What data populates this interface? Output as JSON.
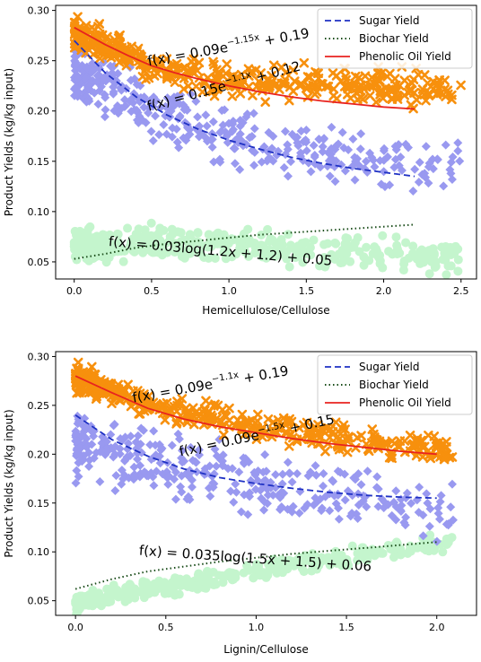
{
  "chart_data": [
    {
      "type": "scatter",
      "xlabel": "Hemicellulose/Cellulose",
      "ylabel": "Product Yields (kg/kg input)",
      "xlim": [
        -0.12,
        2.6
      ],
      "ylim": [
        0.033,
        0.305
      ],
      "xticks": [
        "0.0",
        "0.5",
        "1.0",
        "1.5",
        "2.0",
        "2.5"
      ],
      "xtick_values": [
        0,
        0.5,
        1.0,
        1.5,
        2.0,
        2.5
      ],
      "yticks": [
        "0.05",
        "0.10",
        "0.15",
        "0.20",
        "0.25",
        "0.30"
      ],
      "ytick_values": [
        0.05,
        0.1,
        0.15,
        0.2,
        0.25,
        0.3
      ],
      "grid": false,
      "legend_position": "top-right",
      "series": [
        {
          "name": "Sugar Yield",
          "kind": "line",
          "color": "#1f31c4",
          "dash": "dashed",
          "x": [
            0.0,
            0.2,
            0.4,
            0.6,
            0.8,
            1.0,
            1.2,
            1.4,
            1.6,
            1.8,
            2.0,
            2.2
          ],
          "y": [
            0.27,
            0.238,
            0.214,
            0.196,
            0.182,
            0.171,
            0.162,
            0.154,
            0.148,
            0.143,
            0.139,
            0.135
          ]
        },
        {
          "name": "Biochar Yield",
          "kind": "line",
          "color": "#1a4d1a",
          "dash": "dotted",
          "x": [
            0.0,
            0.2,
            0.4,
            0.6,
            0.8,
            1.0,
            1.2,
            1.4,
            1.6,
            1.8,
            2.0,
            2.2
          ],
          "y": [
            0.053,
            0.058,
            0.064,
            0.068,
            0.071,
            0.074,
            0.077,
            0.079,
            0.081,
            0.083,
            0.085,
            0.087
          ]
        },
        {
          "name": "Phenolic Oil Yield",
          "kind": "line",
          "color": "#e8231f",
          "dash": "solid",
          "x": [
            0.0,
            0.2,
            0.35,
            0.5,
            0.65,
            0.8,
            1.0,
            1.2,
            1.4,
            1.6,
            1.8,
            2.0,
            2.2
          ],
          "y": [
            0.283,
            0.266,
            0.255,
            0.245,
            0.238,
            0.232,
            0.225,
            0.219,
            0.214,
            0.21,
            0.207,
            0.204,
            0.202
          ]
        },
        {
          "kind": "scatter-band",
          "marker": "x",
          "color": "#f7900d",
          "x_range": [
            0.0,
            2.5
          ],
          "center": [
            [
              0.0,
              0.275
            ],
            [
              0.5,
              0.245
            ],
            [
              1.0,
              0.232
            ],
            [
              1.5,
              0.226
            ],
            [
              2.0,
              0.224
            ],
            [
              2.5,
              0.222
            ]
          ],
          "spread": 0.012,
          "count": 420
        },
        {
          "kind": "scatter-band",
          "marker": "diamond",
          "color": "#9999f0",
          "x_range": [
            0.0,
            2.5
          ],
          "center": [
            [
              0.0,
              0.24
            ],
            [
              0.5,
              0.2
            ],
            [
              1.0,
              0.175
            ],
            [
              1.5,
              0.16
            ],
            [
              2.0,
              0.148
            ],
            [
              2.5,
              0.143
            ]
          ],
          "spread": 0.02,
          "count": 380
        },
        {
          "kind": "scatter-band",
          "marker": "circle",
          "color": "#c4f5cd",
          "x_range": [
            0.0,
            2.5
          ],
          "center": [
            [
              0.0,
              0.065
            ],
            [
              0.5,
              0.07
            ],
            [
              1.0,
              0.068
            ],
            [
              1.5,
              0.062
            ],
            [
              2.0,
              0.058
            ],
            [
              2.5,
              0.055
            ]
          ],
          "spread": 0.012,
          "count": 360
        }
      ],
      "annotations": [
        {
          "base": "f(x) = 0.09e",
          "sup": "−1.15x",
          "tail": " + 0.19",
          "x": 0.48,
          "y": 0.245,
          "angle": 10
        },
        {
          "base": "f(x) = 0.15e",
          "sup": "−1.1x",
          "tail": " + 0.12",
          "x": 0.48,
          "y": 0.2,
          "angle": 15
        },
        {
          "base": "f(x) = 0.03log(1.2x + 1.2) + 0.05",
          "sup": "",
          "tail": "",
          "x": 0.22,
          "y": 0.066,
          "angle": -5
        }
      ]
    },
    {
      "type": "scatter",
      "xlabel": "Lignin/Cellulose",
      "ylabel": "Product Yields (kg/kg input)",
      "xlim": [
        -0.11,
        2.22
      ],
      "ylim": [
        0.035,
        0.305
      ],
      "xticks": [
        "0.0",
        "0.5",
        "1.0",
        "1.5",
        "2.0"
      ],
      "xtick_values": [
        0,
        0.5,
        1.0,
        1.5,
        2.0
      ],
      "yticks": [
        "0.05",
        "0.10",
        "0.15",
        "0.20",
        "0.25",
        "0.30"
      ],
      "ytick_values": [
        0.05,
        0.1,
        0.15,
        0.2,
        0.25,
        0.3
      ],
      "grid": false,
      "legend_position": "top-right",
      "series": [
        {
          "name": "Sugar Yield",
          "kind": "line",
          "color": "#1f31c4",
          "dash": "dashed",
          "x": [
            0.0,
            0.2,
            0.4,
            0.6,
            0.8,
            1.0,
            1.2,
            1.4,
            1.6,
            1.8,
            2.0
          ],
          "y": [
            0.24,
            0.215,
            0.198,
            0.185,
            0.176,
            0.17,
            0.165,
            0.161,
            0.158,
            0.156,
            0.155
          ]
        },
        {
          "name": "Biochar Yield",
          "kind": "line",
          "color": "#1a4d1a",
          "dash": "dotted",
          "x": [
            0.0,
            0.2,
            0.4,
            0.6,
            0.8,
            1.0,
            1.2,
            1.4,
            1.6,
            1.8,
            2.0
          ],
          "y": [
            0.062,
            0.072,
            0.08,
            0.085,
            0.09,
            0.094,
            0.098,
            0.101,
            0.104,
            0.107,
            0.11
          ]
        },
        {
          "name": "Phenolic Oil Yield",
          "kind": "line",
          "color": "#e8231f",
          "dash": "solid",
          "x": [
            0.0,
            0.2,
            0.4,
            0.6,
            0.8,
            1.0,
            1.2,
            1.4,
            1.6,
            1.8,
            2.0
          ],
          "y": [
            0.28,
            0.263,
            0.247,
            0.236,
            0.228,
            0.222,
            0.216,
            0.211,
            0.207,
            0.203,
            0.2
          ]
        },
        {
          "kind": "scatter-band",
          "marker": "x",
          "color": "#f7900d",
          "x_range": [
            0.0,
            2.1
          ],
          "center": [
            [
              0.0,
              0.278
            ],
            [
              0.5,
              0.245
            ],
            [
              1.0,
              0.228
            ],
            [
              1.5,
              0.215
            ],
            [
              2.1,
              0.203
            ]
          ],
          "spread": 0.01,
          "count": 420
        },
        {
          "kind": "scatter-band",
          "marker": "diamond",
          "color": "#9999f0",
          "x_range": [
            0.0,
            2.1
          ],
          "center": [
            [
              0.0,
              0.21
            ],
            [
              0.5,
              0.19
            ],
            [
              1.0,
              0.17
            ],
            [
              1.5,
              0.155
            ],
            [
              2.1,
              0.135
            ]
          ],
          "spread": 0.025,
          "count": 340
        },
        {
          "kind": "scatter-band",
          "marker": "circle",
          "color": "#c4f5cd",
          "x_range": [
            0.0,
            2.1
          ],
          "center": [
            [
              0.0,
              0.048
            ],
            [
              0.5,
              0.065
            ],
            [
              1.0,
              0.08
            ],
            [
              1.5,
              0.095
            ],
            [
              2.1,
              0.11
            ]
          ],
          "spread": 0.007,
          "count": 340
        }
      ],
      "annotations": [
        {
          "base": "f(x) = 0.09e",
          "sup": "−1.1x",
          "tail": " + 0.19",
          "x": 0.32,
          "y": 0.253,
          "angle": 10
        },
        {
          "base": "f(x) = 0.09e",
          "sup": "−1.5x",
          "tail": " + 0.15",
          "x": 0.58,
          "y": 0.198,
          "angle": 12
        },
        {
          "base": "f(x) = 0.035log(1.5x + 1.5) + 0.06",
          "sup": "",
          "tail": "",
          "x": 0.35,
          "y": 0.097,
          "angle": -4
        }
      ]
    }
  ]
}
